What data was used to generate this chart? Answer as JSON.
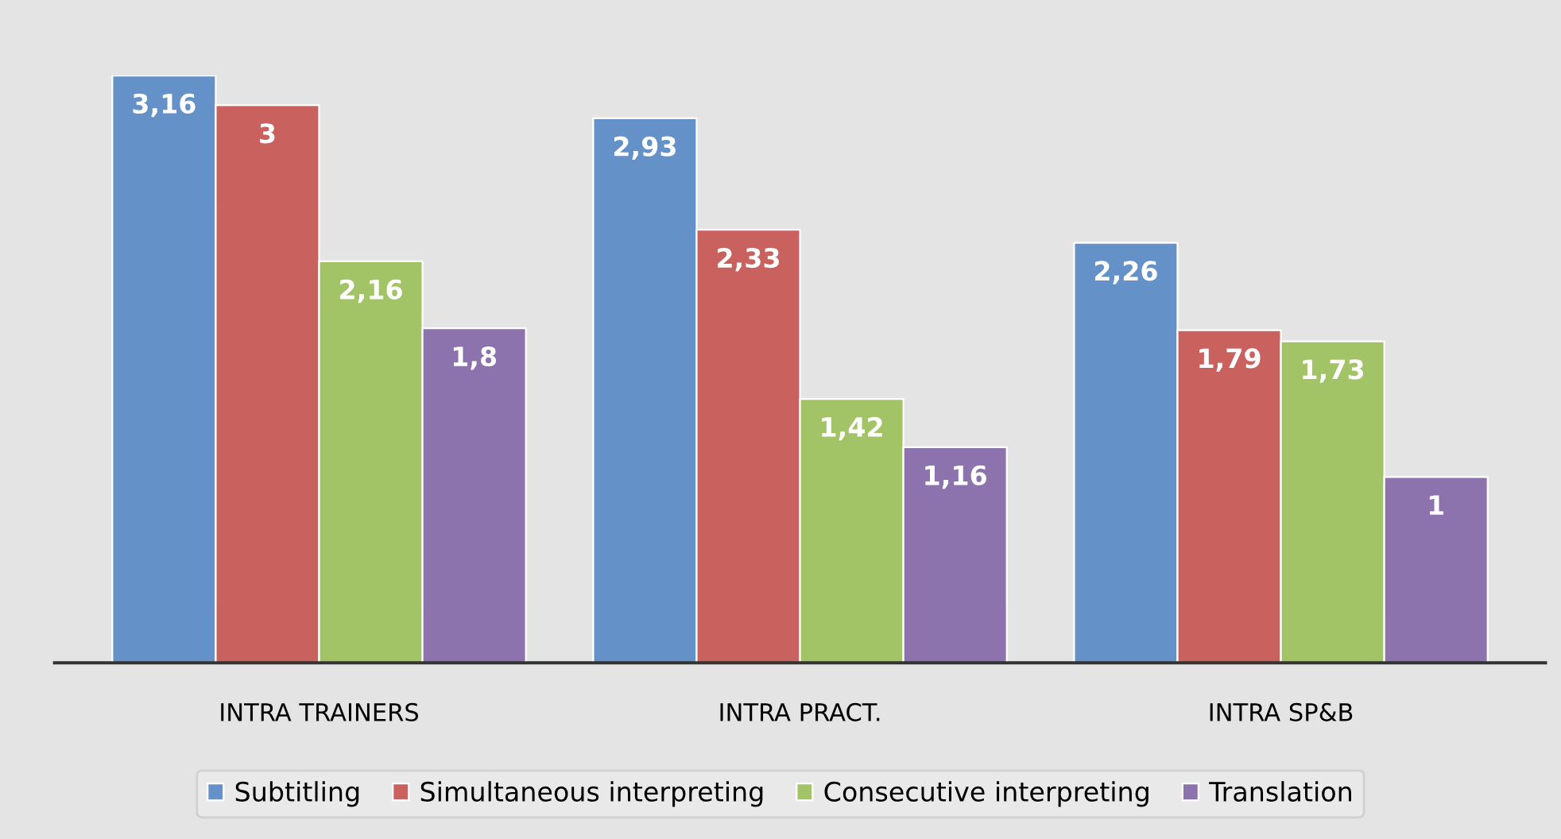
{
  "chart_data": {
    "type": "bar",
    "categories": [
      "INTRA TRAINERS",
      "INTRA PRACT.",
      "INTRA SP&B"
    ],
    "series": [
      {
        "name": "Subtitling",
        "color": "#6491c8",
        "values": [
          3.16,
          2.93,
          2.26
        ],
        "value_labels": [
          "3,16",
          "2,93",
          "2,26"
        ]
      },
      {
        "name": "Simultaneous interpreting",
        "color": "#c9625f",
        "values": [
          3,
          2.33,
          1.79
        ],
        "value_labels": [
          "3",
          "2,33",
          "1,79"
        ]
      },
      {
        "name": "Consecutive interpreting",
        "color": "#a3c466",
        "values": [
          2.16,
          1.42,
          1.73
        ],
        "value_labels": [
          "2,16",
          "1,42",
          "1,73"
        ]
      },
      {
        "name": "Translation",
        "color": "#8d73ad",
        "values": [
          1.8,
          1.16,
          1
        ],
        "value_labels": [
          "1,8",
          "1,16",
          "1"
        ]
      }
    ],
    "tick_labels": "x",
    "legend": "bottom",
    "grid": false
  }
}
